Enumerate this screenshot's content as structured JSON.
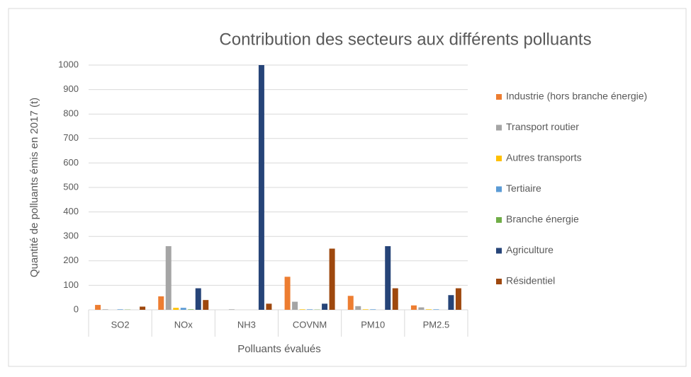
{
  "chart_data": {
    "type": "bar",
    "title": "Contribution des secteurs aux différents polluants",
    "x_label": "Polluants évalués",
    "y_label": "Quantité de polluants émis en 2017 (t)",
    "categories": [
      "SO2",
      "NOx",
      "NH3",
      "COVNM",
      "PM10",
      "PM2.5"
    ],
    "series": [
      {
        "name": "Industrie (hors branche énergie)",
        "color": "#ed7d31",
        "values": [
          20,
          55,
          0,
          135,
          57,
          18
        ]
      },
      {
        "name": "Transport routier",
        "color": "#a5a5a5",
        "values": [
          2,
          260,
          2,
          33,
          15,
          10
        ]
      },
      {
        "name": "Autres transports",
        "color": "#ffc000",
        "values": [
          0,
          8,
          0,
          2,
          2,
          2
        ]
      },
      {
        "name": "Tertiaire",
        "color": "#5b9bd5",
        "values": [
          2,
          8,
          0,
          2,
          2,
          2
        ]
      },
      {
        "name": "Branche énergie",
        "color": "#70ad47",
        "values": [
          1,
          2,
          0,
          1,
          0,
          0
        ]
      },
      {
        "name": "Agriculture",
        "color": "#264478",
        "values": [
          0,
          88,
          1000,
          25,
          260,
          60
        ]
      },
      {
        "name": "Résidentiel",
        "color": "#9e480e",
        "values": [
          13,
          40,
          25,
          250,
          88,
          88
        ]
      }
    ],
    "ylim": [
      0,
      1000
    ],
    "yticks": [
      0,
      100,
      200,
      300,
      400,
      500,
      600,
      700,
      800,
      900,
      1000
    ],
    "grid": true,
    "legend": "right"
  }
}
